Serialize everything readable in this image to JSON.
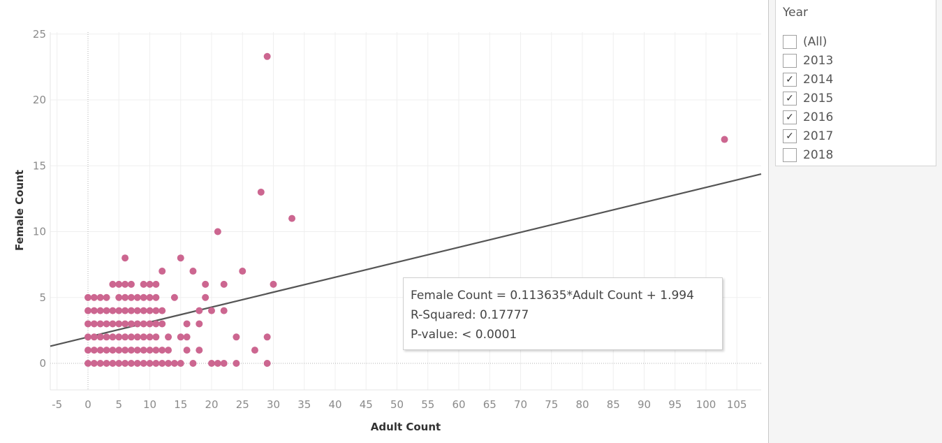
{
  "chart_data": {
    "type": "scatter",
    "xlabel": "Adult Count",
    "ylabel": "Female Count",
    "xlim": [
      -6,
      109
    ],
    "ylim": [
      -2.2,
      26
    ],
    "xticks": [
      "-5",
      "0",
      "5",
      "10",
      "15",
      "20",
      "25",
      "30",
      "35",
      "40",
      "45",
      "50",
      "55",
      "60",
      "65",
      "70",
      "75",
      "80",
      "85",
      "90",
      "95",
      "100",
      "105"
    ],
    "yticks": [
      "0",
      "5",
      "10",
      "15",
      "20",
      "25"
    ],
    "grid": true,
    "point_color": "#cc6690",
    "points": [
      [
        0,
        0
      ],
      [
        1,
        0
      ],
      [
        2,
        0
      ],
      [
        3,
        0
      ],
      [
        4,
        0
      ],
      [
        5,
        0
      ],
      [
        6,
        0
      ],
      [
        7,
        0
      ],
      [
        8,
        0
      ],
      [
        9,
        0
      ],
      [
        10,
        0
      ],
      [
        11,
        0
      ],
      [
        12,
        0
      ],
      [
        13,
        0
      ],
      [
        14,
        0
      ],
      [
        15,
        0
      ],
      [
        17,
        0
      ],
      [
        20,
        0
      ],
      [
        21,
        0
      ],
      [
        22,
        0
      ],
      [
        24,
        0
      ],
      [
        29,
        0
      ],
      [
        0,
        1
      ],
      [
        1,
        1
      ],
      [
        2,
        1
      ],
      [
        3,
        1
      ],
      [
        4,
        1
      ],
      [
        5,
        1
      ],
      [
        6,
        1
      ],
      [
        7,
        1
      ],
      [
        8,
        1
      ],
      [
        9,
        1
      ],
      [
        10,
        1
      ],
      [
        11,
        1
      ],
      [
        12,
        1
      ],
      [
        13,
        1
      ],
      [
        16,
        1
      ],
      [
        18,
        1
      ],
      [
        27,
        1
      ],
      [
        0,
        2
      ],
      [
        1,
        2
      ],
      [
        2,
        2
      ],
      [
        3,
        2
      ],
      [
        4,
        2
      ],
      [
        5,
        2
      ],
      [
        6,
        2
      ],
      [
        7,
        2
      ],
      [
        8,
        2
      ],
      [
        9,
        2
      ],
      [
        10,
        2
      ],
      [
        11,
        2
      ],
      [
        13,
        2
      ],
      [
        15,
        2
      ],
      [
        16,
        2
      ],
      [
        24,
        2
      ],
      [
        29,
        2
      ],
      [
        0,
        3
      ],
      [
        1,
        3
      ],
      [
        2,
        3
      ],
      [
        3,
        3
      ],
      [
        4,
        3
      ],
      [
        5,
        3
      ],
      [
        6,
        3
      ],
      [
        7,
        3
      ],
      [
        8,
        3
      ],
      [
        9,
        3
      ],
      [
        10,
        3
      ],
      [
        11,
        3
      ],
      [
        12,
        3
      ],
      [
        16,
        3
      ],
      [
        18,
        3
      ],
      [
        0,
        4
      ],
      [
        1,
        4
      ],
      [
        2,
        4
      ],
      [
        3,
        4
      ],
      [
        4,
        4
      ],
      [
        5,
        4
      ],
      [
        6,
        4
      ],
      [
        7,
        4
      ],
      [
        8,
        4
      ],
      [
        9,
        4
      ],
      [
        10,
        4
      ],
      [
        11,
        4
      ],
      [
        12,
        4
      ],
      [
        18,
        4
      ],
      [
        20,
        4
      ],
      [
        22,
        4
      ],
      [
        0,
        5
      ],
      [
        1,
        5
      ],
      [
        2,
        5
      ],
      [
        3,
        5
      ],
      [
        5,
        5
      ],
      [
        6,
        5
      ],
      [
        7,
        5
      ],
      [
        8,
        5
      ],
      [
        9,
        5
      ],
      [
        10,
        5
      ],
      [
        11,
        5
      ],
      [
        14,
        5
      ],
      [
        19,
        5
      ],
      [
        4,
        6
      ],
      [
        5,
        6
      ],
      [
        6,
        6
      ],
      [
        7,
        6
      ],
      [
        9,
        6
      ],
      [
        10,
        6
      ],
      [
        11,
        6
      ],
      [
        19,
        6
      ],
      [
        22,
        6
      ],
      [
        30,
        6
      ],
      [
        12,
        7
      ],
      [
        17,
        7
      ],
      [
        25,
        7
      ],
      [
        6,
        8
      ],
      [
        15,
        8
      ],
      [
        21,
        10
      ],
      [
        33,
        11
      ],
      [
        28,
        13
      ],
      [
        103,
        17
      ],
      [
        29,
        23.3
      ]
    ],
    "trend": {
      "slope": 0.113635,
      "intercept": 1.994,
      "color": "#555555"
    },
    "tooltip": [
      "Female Count = 0.113635*Adult Count + 1.994",
      "R-Squared: 0.17777",
      "P-value: < 0.0001"
    ]
  },
  "filter": {
    "title": "Year",
    "items": [
      {
        "label": "(All)",
        "checked": false
      },
      {
        "label": "2013",
        "checked": false
      },
      {
        "label": "2014",
        "checked": true
      },
      {
        "label": "2015",
        "checked": true
      },
      {
        "label": "2016",
        "checked": true
      },
      {
        "label": "2017",
        "checked": true
      },
      {
        "label": "2018",
        "checked": false
      }
    ]
  }
}
